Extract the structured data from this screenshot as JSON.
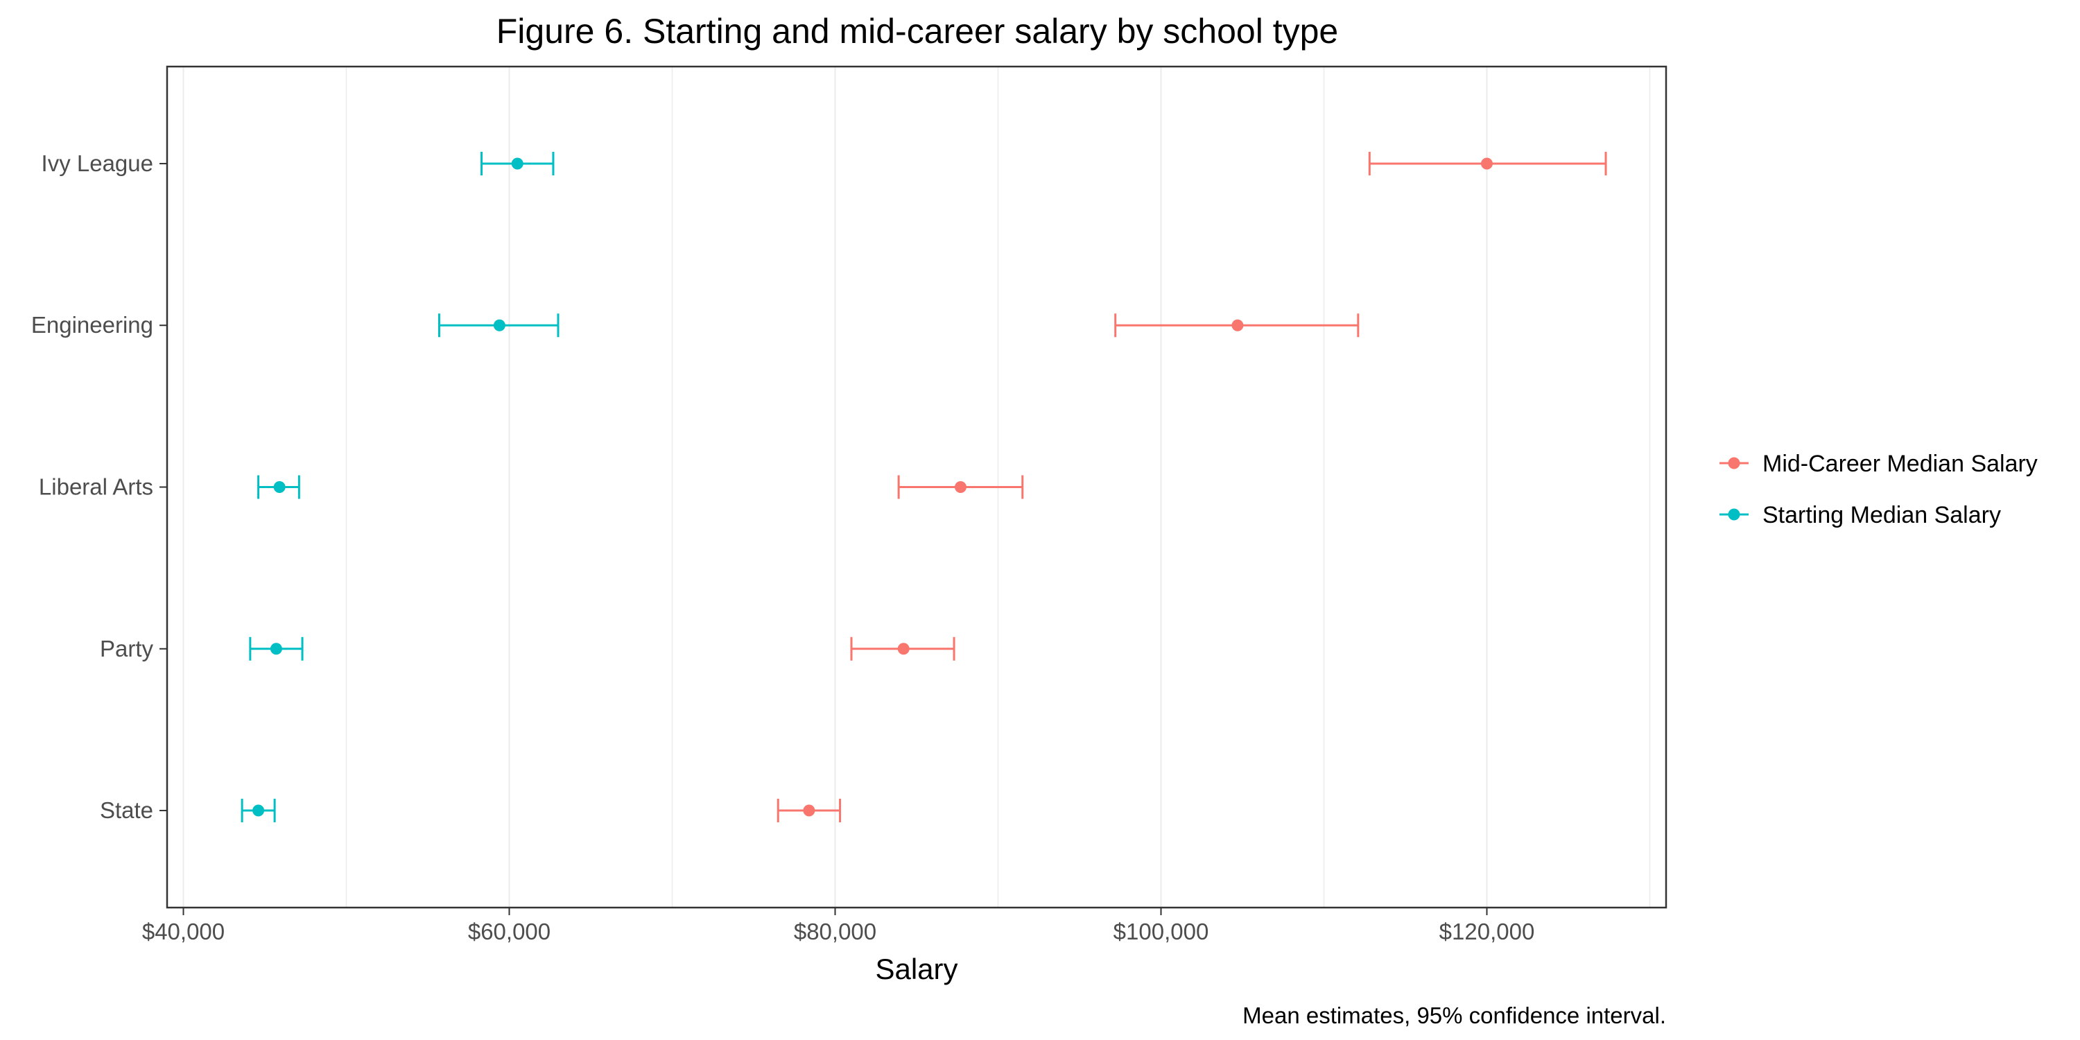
{
  "chart_data": {
    "type": "scatter",
    "title": "Figure 6. Starting and mid-career salary by school type",
    "xlabel": "Salary",
    "ylabel": "",
    "caption": "Mean estimates, 95% confidence interval.",
    "xlim": [
      39000,
      131000
    ],
    "x_ticks": [
      40000,
      60000,
      80000,
      100000,
      120000
    ],
    "x_tick_labels": [
      "$40,000",
      "$60,000",
      "$80,000",
      "$100,000",
      "$120,000"
    ],
    "x_minor_grid": [
      50000,
      70000,
      90000,
      110000,
      130000
    ],
    "categories": [
      "Ivy League",
      "Engineering",
      "Liberal Arts",
      "Party",
      "State"
    ],
    "grid": "vertical",
    "legend_position": "right",
    "series": [
      {
        "name": "Mid-Career Median Salary",
        "color": "#f8766d",
        "points": [
          {
            "category": "Ivy League",
            "mean": 120000,
            "low": 112800,
            "high": 127300
          },
          {
            "category": "Engineering",
            "mean": 104700,
            "low": 97200,
            "high": 112100
          },
          {
            "category": "Liberal Arts",
            "mean": 87700,
            "low": 83900,
            "high": 91500
          },
          {
            "category": "Party",
            "mean": 84200,
            "low": 81000,
            "high": 87300
          },
          {
            "category": "State",
            "mean": 78400,
            "low": 76500,
            "high": 80300
          }
        ]
      },
      {
        "name": "Starting Median Salary",
        "color": "#00bfc4",
        "points": [
          {
            "category": "Ivy League",
            "mean": 60500,
            "low": 58300,
            "high": 62700
          },
          {
            "category": "Engineering",
            "mean": 59400,
            "low": 55700,
            "high": 63000
          },
          {
            "category": "Liberal Arts",
            "mean": 45900,
            "low": 44600,
            "high": 47100
          },
          {
            "category": "Party",
            "mean": 45700,
            "low": 44100,
            "high": 47300
          },
          {
            "category": "State",
            "mean": 44600,
            "low": 43600,
            "high": 45600
          }
        ]
      }
    ]
  }
}
